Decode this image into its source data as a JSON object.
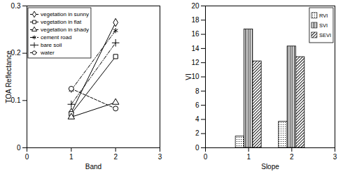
{
  "chart_data": [
    {
      "type": "line",
      "x_label": "Band",
      "y_label": "TOA Reflectance",
      "x": [
        1,
        2
      ],
      "xlim": [
        0,
        3
      ],
      "xticks": [
        0,
        1,
        2,
        3
      ],
      "ylim": [
        0,
        0.3
      ],
      "yticks": [
        0,
        0.1,
        0.2,
        0.3
      ],
      "grid": false,
      "legend": "upper left",
      "series": [
        {
          "name": "vegetation in sunny",
          "color": "#000000",
          "marker": "diamond",
          "line_style": "solid",
          "values": [
            0.075,
            0.265
          ]
        },
        {
          "name": "vegetation in flat",
          "color": "#000000",
          "marker": "square",
          "line_style": "solid",
          "values": [
            0.072,
            0.193
          ]
        },
        {
          "name": "vegetation in shady",
          "color": "#000000",
          "marker": "triangle",
          "line_style": "solid",
          "values": [
            0.065,
            0.096
          ]
        },
        {
          "name": "cement road",
          "color": "#000000",
          "marker": "asterisk",
          "line_style": "dashdot",
          "values": [
            0.122,
            0.248
          ]
        },
        {
          "name": "bare soil",
          "color": "#000000",
          "marker": "plus",
          "line_style": "dashdot",
          "values": [
            0.092,
            0.222
          ]
        },
        {
          "name": "water",
          "color": "#000000",
          "marker": "circle",
          "line_style": "dashed",
          "values": [
            0.125,
            0.083
          ]
        }
      ]
    },
    {
      "type": "bar",
      "x_label": "Slope",
      "y_label": "VI",
      "x": [
        1,
        2
      ],
      "xlim": [
        0,
        3
      ],
      "xticks": [
        0,
        1,
        2,
        3
      ],
      "ylim": [
        0,
        20
      ],
      "yticks": [
        0,
        2,
        4,
        6,
        8,
        10,
        12,
        14,
        16,
        18,
        20
      ],
      "grid": false,
      "legend": "upper right",
      "series": [
        {
          "name": "RVI",
          "color": "#000000",
          "values": [
            1.6,
            3.7
          ]
        },
        {
          "name": "SVI",
          "color": "#000000",
          "values": [
            16.7,
            14.3
          ]
        },
        {
          "name": "SEVI",
          "color": "#000000",
          "values": [
            12.2,
            12.8
          ]
        }
      ]
    }
  ]
}
